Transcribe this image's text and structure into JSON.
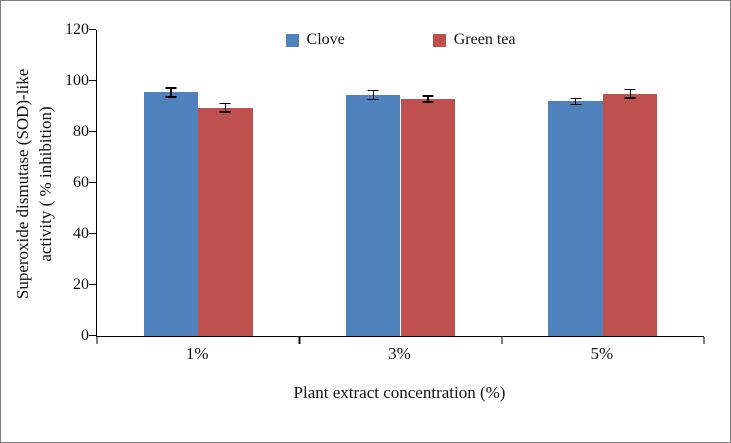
{
  "chart_data": {
    "type": "bar",
    "title": "",
    "categories": [
      "1%",
      "3%",
      "5%"
    ],
    "series": [
      {
        "name": "Clove",
        "color": "#4f81bd",
        "values": [
          95.5,
          94.5,
          92.0
        ],
        "errors": [
          2.0,
          2.0,
          1.5
        ]
      },
      {
        "name": "Green tea",
        "color": "#c0504d",
        "values": [
          89.5,
          93.0,
          95.0
        ],
        "errors": [
          2.0,
          1.5,
          2.0
        ]
      },
      {
        "note": ""
      }
    ],
    "xlabel": "Plant extract concentration (%)",
    "ylabel": "Superoxide dismutase (SOD)-like activity ( % inhibition)",
    "ylabel_lines": [
      "Superoxide dismutase (SOD)-like",
      "activity ( % inhibition)"
    ],
    "ylim": [
      0,
      120
    ],
    "ytick_interval": 20,
    "yticks": [
      "0",
      "20",
      "40",
      "60",
      "80",
      "100",
      "120"
    ],
    "grid": false,
    "legend_position": "top-center",
    "error_bar_color": "#000000",
    "axis_color": "#000000",
    "border_color": "#7f7f7f"
  }
}
